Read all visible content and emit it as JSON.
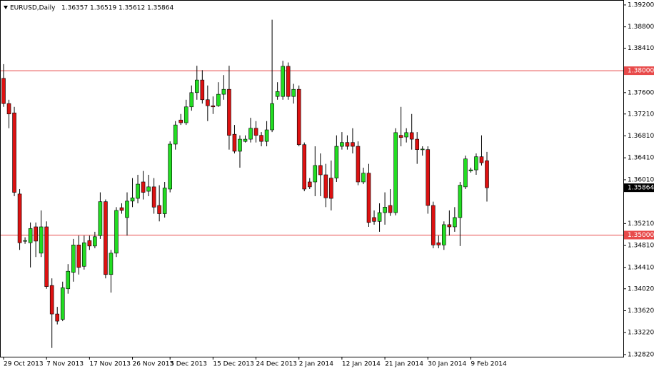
{
  "chart_data": {
    "type": "candlestick",
    "title": "EURUSD,Daily",
    "categories": [
      "29 Oct 2013",
      null,
      null,
      null,
      null,
      null,
      null,
      null,
      "7 Nov 2013",
      null,
      null,
      null,
      null,
      null,
      null,
      null,
      "17 Nov 2013",
      null,
      null,
      null,
      null,
      null,
      null,
      null,
      "26 Nov 2013",
      null,
      null,
      null,
      null,
      null,
      null,
      "5 Dec 2013",
      null,
      null,
      null,
      null,
      null,
      null,
      null,
      "15 Dec 2013",
      null,
      null,
      null,
      null,
      null,
      null,
      null,
      "24 Dec 2013",
      null,
      null,
      null,
      null,
      null,
      null,
      null,
      "2 Jan 2014",
      null,
      null,
      null,
      null,
      null,
      null,
      null,
      "12 Jan 2014",
      null,
      null,
      null,
      null,
      null,
      null,
      null,
      "21 Jan 2014",
      null,
      null,
      null,
      null,
      null,
      null,
      null,
      "30 Jan 2014",
      null,
      null,
      null,
      null,
      null,
      null,
      null,
      "9 Feb 2014",
      null,
      null,
      null
    ],
    "open": [
      1.3786,
      1.374,
      1.3723,
      1.3575,
      1.3489,
      1.3486,
      1.3515,
      1.3467,
      1.3515,
      1.3408,
      1.3356,
      1.3346,
      1.3402,
      1.3432,
      1.3482,
      1.3443,
      1.349,
      1.348,
      1.3499,
      1.3561,
      1.3428,
      1.3467,
      1.355,
      1.3532,
      1.3562,
      1.3567,
      1.3597,
      1.358,
      1.3588,
      1.3554,
      1.3539,
      1.3584,
      1.3666,
      1.371,
      1.3705,
      1.3734,
      1.376,
      1.3783,
      1.3747,
      1.3736,
      1.3736,
      1.3757,
      1.3766,
      1.3684,
      1.3653,
      1.3671,
      1.3675,
      1.3695,
      1.3682,
      1.3671,
      1.3692,
      1.3753,
      1.3753,
      1.3808,
      1.3753,
      1.3766,
      1.3665,
      1.3597,
      1.3597,
      1.3627,
      1.361,
      1.3604,
      1.3604,
      1.3662,
      1.3669,
      1.3669,
      1.3662,
      1.3597,
      1.3613,
      1.3532,
      1.3525,
      1.3541,
      1.3554,
      1.3541,
      1.3682,
      1.3679,
      1.3687,
      1.3675,
      1.3656,
      1.3656,
      1.3554,
      1.3486,
      1.3482,
      1.3519,
      1.3515,
      1.3532,
      1.3588,
      1.3617,
      1.3619,
      1.3643,
      1.36357
    ],
    "high": [
      1.3812,
      1.3747,
      1.3734,
      1.3584,
      1.3496,
      1.3523,
      1.3523,
      1.3545,
      1.3525,
      1.3421,
      1.3369,
      1.3415,
      1.3447,
      1.3493,
      1.3499,
      1.3499,
      1.3499,
      1.3506,
      1.3578,
      1.3565,
      1.3473,
      1.3551,
      1.3558,
      1.3578,
      1.3604,
      1.361,
      1.3617,
      1.361,
      1.3604,
      1.3591,
      1.3597,
      1.3671,
      1.3708,
      1.3721,
      1.3747,
      1.3773,
      1.3809,
      1.3801,
      1.3773,
      1.3753,
      1.3779,
      1.3792,
      1.3809,
      1.3701,
      1.3682,
      1.3682,
      1.3714,
      1.3708,
      1.3688,
      1.3708,
      1.3893,
      1.3779,
      1.3818,
      1.3815,
      1.3776,
      1.3773,
      1.3669,
      1.3604,
      1.3662,
      1.3649,
      1.363,
      1.3636,
      1.3682,
      1.3688,
      1.3682,
      1.3695,
      1.3671,
      1.3623,
      1.363,
      1.3545,
      1.3558,
      1.3578,
      1.3584,
      1.3695,
      1.3734,
      1.3695,
      1.3721,
      1.3688,
      1.3662,
      1.3662,
      1.3561,
      1.3499,
      1.3525,
      1.3545,
      1.3551,
      1.3597,
      1.3645,
      1.3623,
      1.3649,
      1.3682,
      1.36519
    ],
    "low": [
      1.3734,
      1.3695,
      1.3571,
      1.3473,
      1.3484,
      1.3441,
      1.346,
      1.346,
      1.3402,
      1.3294,
      1.3337,
      1.3343,
      1.3393,
      1.3415,
      1.3428,
      1.3437,
      1.3473,
      1.3476,
      1.3493,
      1.3421,
      1.3395,
      1.346,
      1.3539,
      1.3499,
      1.3551,
      1.3558,
      1.3565,
      1.3571,
      1.3539,
      1.3525,
      1.3532,
      1.3578,
      1.3656,
      1.3701,
      1.3701,
      1.3727,
      1.3747,
      1.374,
      1.3708,
      1.3721,
      1.3734,
      1.3747,
      1.3656,
      1.3649,
      1.3623,
      1.3669,
      1.3669,
      1.3669,
      1.3662,
      1.3662,
      1.3688,
      1.3747,
      1.3747,
      1.3747,
      1.374,
      1.3662,
      1.358,
      1.3584,
      1.3571,
      1.3571,
      1.3551,
      1.3545,
      1.3597,
      1.3656,
      1.3656,
      1.3649,
      1.3591,
      1.3593,
      1.3515,
      1.3519,
      1.3506,
      1.3519,
      1.3535,
      1.3536,
      1.3662,
      1.3669,
      1.3656,
      1.363,
      1.3645,
      1.3539,
      1.3476,
      1.3476,
      1.3473,
      1.3499,
      1.3506,
      1.348,
      1.3584,
      1.3614,
      1.361,
      1.3627,
      1.35612
    ],
    "close": [
      1.374,
      1.3721,
      1.3578,
      1.3486,
      1.349,
      1.3512,
      1.3489,
      1.3515,
      1.3406,
      1.3356,
      1.3343,
      1.3404,
      1.3434,
      1.3482,
      1.3441,
      1.3486,
      1.348,
      1.3497,
      1.3561,
      1.3428,
      1.3467,
      1.3545,
      1.3545,
      1.3562,
      1.3568,
      1.3593,
      1.3578,
      1.3588,
      1.3551,
      1.3539,
      1.3586,
      1.3666,
      1.3701,
      1.3705,
      1.3734,
      1.376,
      1.3783,
      1.3747,
      1.3736,
      1.3734,
      1.3757,
      1.3766,
      1.3682,
      1.3653,
      1.3675,
      1.3675,
      1.3695,
      1.3682,
      1.3671,
      1.3692,
      1.374,
      1.3762,
      1.3808,
      1.3753,
      1.3766,
      1.3665,
      1.3584,
      1.3588,
      1.3627,
      1.361,
      1.3568,
      1.3567,
      1.3662,
      1.3669,
      1.3662,
      1.3662,
      1.3597,
      1.3613,
      1.3523,
      1.3525,
      1.3541,
      1.3551,
      1.3541,
      1.3687,
      1.3678,
      1.3687,
      1.3675,
      1.3656,
      1.3657,
      1.3554,
      1.3482,
      1.3482,
      1.3519,
      1.3515,
      1.3532,
      1.3591,
      1.3639,
      1.3619,
      1.3643,
      1.3632,
      1.35864
    ],
    "up_color": "#22dd22",
    "down_color": "#dd1111",
    "wick_color": "#000000",
    "ylim": [
      1.3278,
      1.3929
    ],
    "yticks": [
      {
        "value": 1.392,
        "label": "1.39200"
      },
      {
        "value": 1.388,
        "label": "1.38800"
      },
      {
        "value": 1.3841,
        "label": "1.38410"
      },
      {
        "value": 1.376,
        "label": "1.37600"
      },
      {
        "value": 1.3721,
        "label": "1.37210"
      },
      {
        "value": 1.3681,
        "label": "1.36810"
      },
      {
        "value": 1.3641,
        "label": "1.36410"
      },
      {
        "value": 1.3601,
        "label": "1.36010"
      },
      {
        "value": 1.3521,
        "label": "1.35210"
      },
      {
        "value": 1.3481,
        "label": "1.34810"
      },
      {
        "value": 1.3441,
        "label": "1.34410"
      },
      {
        "value": 1.3402,
        "label": "1.34020"
      },
      {
        "value": 1.3362,
        "label": "1.33620"
      },
      {
        "value": 1.3322,
        "label": "1.33220"
      },
      {
        "value": 1.3282,
        "label": "1.32820"
      }
    ],
    "hlines": [
      {
        "value": 1.38,
        "label": "1.38000"
      },
      {
        "value": 1.35,
        "label": "1.35000"
      }
    ],
    "hline_color": "#e84a4a"
  }
}
